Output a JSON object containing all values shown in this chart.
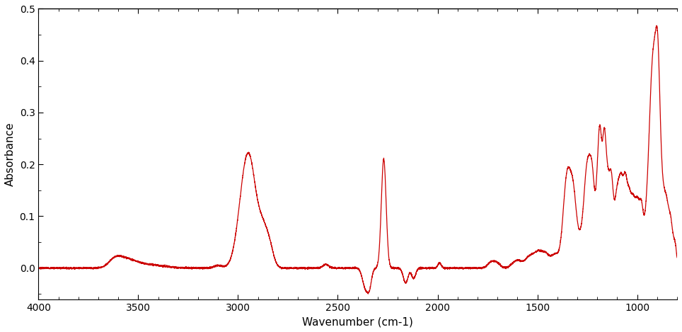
{
  "xlabel": "Wavenumber (cm-1)",
  "ylabel": "Absorbance",
  "xlim": [
    4000,
    800
  ],
  "ylim": [
    -0.06,
    0.5
  ],
  "xticks": [
    4000,
    3500,
    3000,
    2500,
    2000,
    1500,
    1000
  ],
  "yticks": [
    0.0,
    0.1,
    0.2,
    0.3,
    0.4,
    0.5
  ],
  "line_color": "#cc0000",
  "background_color": "#ffffff",
  "line_width": 0.9
}
